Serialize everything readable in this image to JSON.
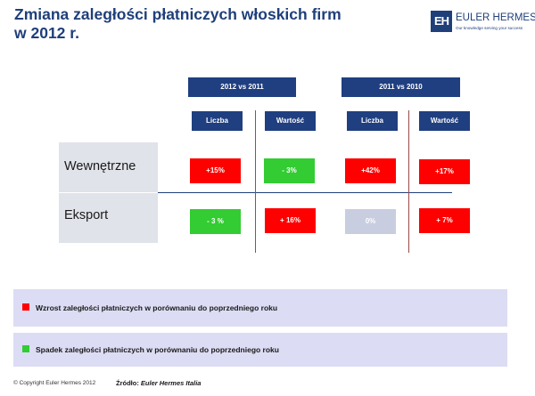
{
  "title": "Zmiana zaległości płatniczych włoskich firm w 2012 r.",
  "logo": {
    "mark": "EH",
    "name": "EULER HERMES",
    "tagline": "Our knowledge serving your success"
  },
  "groups": [
    {
      "label": "2012 vs 2011",
      "columns": [
        "Liczba",
        "Wartość"
      ]
    },
    {
      "label": "2011 vs 2010",
      "columns": [
        "Liczba",
        "Wartość"
      ]
    }
  ],
  "rows": [
    {
      "label": "Wewnętrzne",
      "cells": [
        {
          "value": "+15%",
          "status": "increase"
        },
        {
          "value": "- 3%",
          "status": "decrease"
        },
        {
          "value": "+42%",
          "status": "increase"
        },
        {
          "value": "+17%",
          "status": "increase"
        }
      ]
    },
    {
      "label": "Eksport",
      "cells": [
        {
          "value": "- 3 %",
          "status": "decrease"
        },
        {
          "value": "+ 16%",
          "status": "increase"
        },
        {
          "value": "0%",
          "status": "neutral"
        },
        {
          "value": "+ 7%",
          "status": "increase"
        }
      ]
    }
  ],
  "legend": [
    {
      "text": "Wzrost zaległości płatniczych w porównaniu do poprzedniego roku",
      "color": "#ff0000"
    },
    {
      "text": "Spadek zaległości płatniczych w porównaniu do poprzedniego roku",
      "color": "#33cc33"
    }
  ],
  "footer": {
    "copyright": "© Copyright Euler Hermes 2012",
    "source_label": "Źródło:",
    "source_name": "Euler Hermes Italia"
  }
}
